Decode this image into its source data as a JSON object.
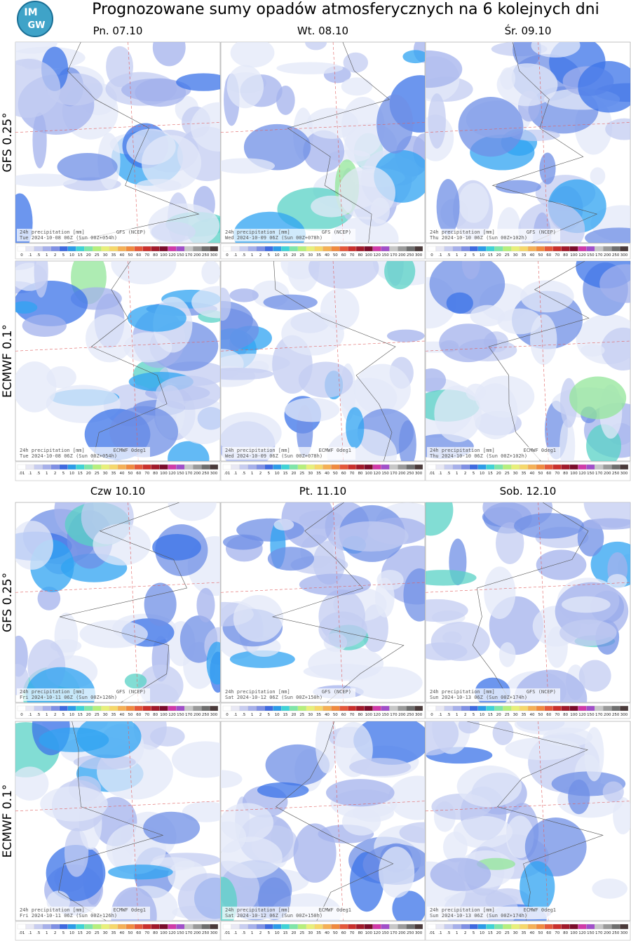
{
  "title": "Prognozowane sumy opadów atmosferycznych na 6 kolejnych dni",
  "logo": [
    "IM",
    "GW"
  ],
  "days": [
    "Pn. 07.10",
    "Wt. 08.10",
    "Śr. 09.10",
    "Czw 10.10",
    "Pt. 11.10",
    "Sob. 12.10"
  ],
  "models": [
    "GFS 0.25°",
    "ECMWF 0.1°"
  ],
  "caption": "24h precipitation   [mm]",
  "sources": [
    "GFS (NCEP)",
    "ECMWF 0deg1"
  ],
  "valid": [
    "Tue 2024-10-08 06Z (Sun 00Z+054h)",
    "Wed 2024-10-09 06Z (Sun 00Z+078h)",
    "Thu 2024-10-10 06Z (Sun 00Z+102h)",
    "Fri 2024-10-11 06Z (Sun 00Z+126h)",
    "Sat 2024-10-12 06Z (Sun 00Z+150h)",
    "Sun 2024-10-13 06Z (Sun 00Z+174h)"
  ],
  "scale_labels": [
    [
      "0",
      ".1",
      ".5",
      "1",
      "2",
      "5",
      "10",
      "15",
      "20",
      "25",
      "30",
      "35",
      "40",
      "50",
      "60",
      "70",
      "80",
      "100",
      "120",
      "150",
      "170",
      "200",
      "250",
      "300"
    ],
    [
      ".01",
      ".1",
      ".5",
      "1",
      "2",
      "5",
      "10",
      "15",
      "20",
      "25",
      "30",
      "35",
      "40",
      "50",
      "60",
      "70",
      "80",
      "100",
      "120",
      "150",
      "170",
      "200",
      "250",
      "300"
    ]
  ]
}
